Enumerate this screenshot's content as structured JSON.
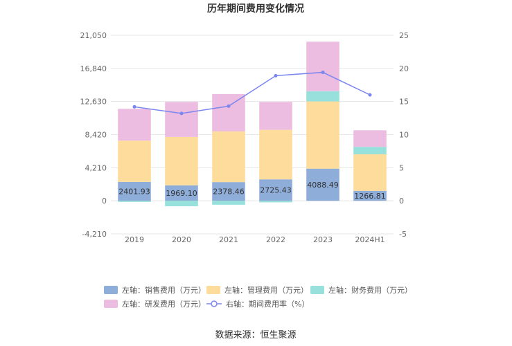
{
  "chart_data": {
    "type": "bar",
    "title": "历年期间费用变化情况",
    "categories": [
      "2019",
      "2020",
      "2021",
      "2022",
      "2023",
      "2024H1"
    ],
    "left_axis": {
      "ticks": [
        "-4,210",
        "0",
        "4,210",
        "8,420",
        "12,630",
        "16,840",
        "21,050"
      ],
      "min": -4210,
      "max": 21050
    },
    "right_axis": {
      "ticks": [
        "-5",
        "0",
        "5",
        "10",
        "15",
        "20",
        "25"
      ],
      "min": -5,
      "max": 25
    },
    "series": [
      {
        "name": "左轴：销售费用（万元）",
        "color": "#8eadd9",
        "values": [
          2401.93,
          1969.1,
          2378.46,
          2725.43,
          4088.49,
          1266.81
        ],
        "labels": [
          "2401.93",
          "1969.10",
          "2378.46",
          "2725.43",
          "4088.49",
          "1266.81"
        ]
      },
      {
        "name": "左轴：管理费用（万元）",
        "color": "#fddc9c",
        "values": [
          5250,
          6150,
          6450,
          6300,
          8550,
          4650
        ]
      },
      {
        "name": "左轴：财务费用（万元）",
        "color": "#98e0dc",
        "values": [
          -150,
          -700,
          -500,
          -200,
          1300,
          950
        ]
      },
      {
        "name": "左轴：研发费用（万元）",
        "color": "#ecbde0",
        "values": [
          4050,
          4450,
          4750,
          3550,
          6300,
          2100
        ]
      }
    ],
    "line_series": {
      "name": "右轴：期间费用率（%）",
      "color": "#7b86ee",
      "values": [
        14.2,
        13.2,
        14.3,
        18.9,
        19.4,
        16.0
      ]
    },
    "grid": true,
    "legend_position": "bottom"
  },
  "source_text": "数据来源：恒生聚源"
}
